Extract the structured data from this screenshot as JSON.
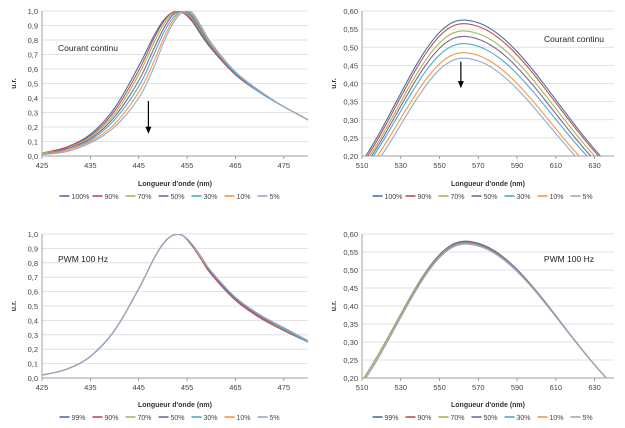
{
  "chart_data": [
    {
      "type": "line",
      "ylabel": "u.r.",
      "xlabel": "Longueur d'onde (nm)",
      "annotation": "Courant continu",
      "arrow": {
        "x": 447,
        "y_from": 0.38,
        "y_to": 0.16
      },
      "xlim": [
        425,
        480
      ],
      "ylim": [
        0,
        1
      ],
      "xticks": [
        425,
        435,
        445,
        455,
        465,
        475
      ],
      "yticks": [
        0,
        0.1,
        0.2,
        0.3,
        0.4,
        0.5,
        0.6,
        0.7,
        0.8,
        0.9,
        1.0
      ],
      "ytick_labels": [
        "0,0",
        "0,1",
        "0,2",
        "0,3",
        "0,4",
        "0,5",
        "0,6",
        "0,7",
        "0,8",
        "0,9",
        "1,0"
      ],
      "grid": true,
      "legend_position": "bottom",
      "x": [
        425,
        430,
        435,
        440,
        445,
        448,
        450,
        452,
        454,
        456,
        458,
        460,
        465,
        470,
        475,
        480
      ],
      "series": [
        {
          "name": "100%",
          "color": "#4a6fa5",
          "values": [
            0.02,
            0.06,
            0.15,
            0.33,
            0.62,
            0.82,
            0.93,
            0.99,
            0.99,
            0.93,
            0.83,
            0.74,
            0.56,
            0.44,
            0.34,
            0.25
          ]
        },
        {
          "name": "90%",
          "color": "#c0504d",
          "values": [
            0.02,
            0.06,
            0.14,
            0.31,
            0.59,
            0.8,
            0.92,
            0.99,
            0.99,
            0.94,
            0.84,
            0.74,
            0.56,
            0.44,
            0.34,
            0.25
          ]
        },
        {
          "name": "70%",
          "color": "#9bbb59",
          "values": [
            0.02,
            0.05,
            0.13,
            0.29,
            0.56,
            0.77,
            0.9,
            0.98,
            1.0,
            0.95,
            0.85,
            0.75,
            0.57,
            0.44,
            0.34,
            0.25
          ]
        },
        {
          "name": "50%",
          "color": "#8064a2",
          "values": [
            0.01,
            0.05,
            0.12,
            0.27,
            0.52,
            0.73,
            0.87,
            0.97,
            1.0,
            0.96,
            0.86,
            0.75,
            0.57,
            0.44,
            0.34,
            0.25
          ]
        },
        {
          "name": "30%",
          "color": "#4bacc6",
          "values": [
            0.01,
            0.04,
            0.11,
            0.25,
            0.48,
            0.69,
            0.84,
            0.95,
            1.0,
            0.97,
            0.87,
            0.76,
            0.57,
            0.44,
            0.34,
            0.25
          ]
        },
        {
          "name": "10%",
          "color": "#f79646",
          "values": [
            0.01,
            0.04,
            0.1,
            0.22,
            0.44,
            0.64,
            0.8,
            0.93,
            1.0,
            0.98,
            0.88,
            0.77,
            0.58,
            0.45,
            0.34,
            0.25
          ]
        },
        {
          "name": "5%",
          "color": "#92a9cf",
          "values": [
            0.01,
            0.03,
            0.09,
            0.2,
            0.4,
            0.6,
            0.77,
            0.91,
            0.99,
            0.99,
            0.89,
            0.78,
            0.58,
            0.45,
            0.34,
            0.25
          ]
        }
      ]
    },
    {
      "type": "line",
      "ylabel": "u.r.",
      "xlabel": "Longueur d'onde (nm)",
      "annotation": "Courant continu",
      "arrow": {
        "x": 561,
        "y_from": 0.46,
        "y_to": 0.39
      },
      "xlim": [
        510,
        640
      ],
      "ylim": [
        0.2,
        0.6
      ],
      "xticks": [
        510,
        530,
        550,
        570,
        590,
        610,
        630
      ],
      "yticks": [
        0.2,
        0.25,
        0.3,
        0.35,
        0.4,
        0.45,
        0.5,
        0.55,
        0.6
      ],
      "ytick_labels": [
        "0,20",
        "0,25",
        "0,30",
        "0,35",
        "0,40",
        "0,45",
        "0,50",
        "0,55",
        "0,60"
      ],
      "grid": true,
      "legend_position": "bottom",
      "series": [
        {
          "name": "100%",
          "color": "#4a6fa5",
          "peak": 0.575,
          "x_left": 512,
          "x_right": 633
        },
        {
          "name": "90%",
          "color": "#c0504d",
          "peak": 0.565,
          "x_left": 513,
          "x_right": 632
        },
        {
          "name": "70%",
          "color": "#9bbb59",
          "peak": 0.545,
          "x_left": 514,
          "x_right": 630
        },
        {
          "name": "50%",
          "color": "#8064a2",
          "peak": 0.53,
          "x_left": 515,
          "x_right": 628
        },
        {
          "name": "30%",
          "color": "#4bacc6",
          "peak": 0.51,
          "x_left": 516,
          "x_right": 626
        },
        {
          "name": "10%",
          "color": "#f79646",
          "peak": 0.485,
          "x_left": 518,
          "x_right": 622
        },
        {
          "name": "5%",
          "color": "#92a9cf",
          "peak": 0.47,
          "x_left": 520,
          "x_right": 620
        }
      ],
      "peak_x": 562
    },
    {
      "type": "line",
      "ylabel": "u.r.",
      "xlabel": "Longueur d'onde (nm)",
      "annotation": "PWM 100 Hz",
      "xlim": [
        425,
        480
      ],
      "ylim": [
        0,
        1
      ],
      "xticks": [
        425,
        435,
        445,
        455,
        465,
        475
      ],
      "yticks": [
        0,
        0.1,
        0.2,
        0.3,
        0.4,
        0.5,
        0.6,
        0.7,
        0.8,
        0.9,
        1.0
      ],
      "ytick_labels": [
        "0,0",
        "0,1",
        "0,2",
        "0,3",
        "0,4",
        "0,5",
        "0,6",
        "0,7",
        "0,8",
        "0,9",
        "1,0"
      ],
      "grid": true,
      "legend_position": "bottom",
      "x": [
        425,
        430,
        435,
        440,
        445,
        448,
        450,
        452,
        454,
        456,
        458,
        460,
        465,
        470,
        475,
        480
      ],
      "series": [
        {
          "name": "99%",
          "color": "#4a6fa5",
          "values": [
            0.02,
            0.06,
            0.15,
            0.33,
            0.62,
            0.82,
            0.93,
            0.99,
            0.99,
            0.92,
            0.82,
            0.72,
            0.54,
            0.42,
            0.33,
            0.25
          ]
        },
        {
          "name": "90%",
          "color": "#c0504d",
          "values": [
            0.02,
            0.06,
            0.15,
            0.33,
            0.62,
            0.82,
            0.93,
            0.99,
            0.99,
            0.92,
            0.82,
            0.72,
            0.54,
            0.42,
            0.33,
            0.25
          ]
        },
        {
          "name": "70%",
          "color": "#9bbb59",
          "values": [
            0.02,
            0.06,
            0.15,
            0.33,
            0.62,
            0.82,
            0.93,
            0.99,
            0.99,
            0.93,
            0.83,
            0.73,
            0.55,
            0.43,
            0.34,
            0.25
          ]
        },
        {
          "name": "50%",
          "color": "#8064a2",
          "values": [
            0.02,
            0.06,
            0.15,
            0.33,
            0.62,
            0.82,
            0.93,
            0.99,
            0.99,
            0.93,
            0.83,
            0.73,
            0.55,
            0.43,
            0.34,
            0.25
          ]
        },
        {
          "name": "30%",
          "color": "#4bacc6",
          "values": [
            0.02,
            0.06,
            0.15,
            0.33,
            0.62,
            0.82,
            0.93,
            0.99,
            0.99,
            0.93,
            0.83,
            0.74,
            0.56,
            0.44,
            0.34,
            0.25
          ]
        },
        {
          "name": "10%",
          "color": "#f79646",
          "values": [
            0.02,
            0.06,
            0.15,
            0.33,
            0.62,
            0.82,
            0.93,
            0.99,
            0.99,
            0.93,
            0.83,
            0.74,
            0.56,
            0.44,
            0.35,
            0.26
          ]
        },
        {
          "name": "5%",
          "color": "#92a9cf",
          "values": [
            0.02,
            0.06,
            0.15,
            0.33,
            0.62,
            0.82,
            0.93,
            0.99,
            0.99,
            0.93,
            0.84,
            0.74,
            0.56,
            0.44,
            0.35,
            0.26
          ]
        }
      ]
    },
    {
      "type": "line",
      "ylabel": "u.r.",
      "xlabel": "Longueur d'onde (nm)",
      "annotation": "PWM 100 Hz",
      "xlim": [
        510,
        640
      ],
      "ylim": [
        0.2,
        0.6
      ],
      "xticks": [
        510,
        530,
        550,
        570,
        590,
        610,
        630
      ],
      "yticks": [
        0.2,
        0.25,
        0.3,
        0.35,
        0.4,
        0.45,
        0.5,
        0.55,
        0.6
      ],
      "ytick_labels": [
        "0,20",
        "0,25",
        "0,30",
        "0,35",
        "0,40",
        "0,45",
        "0,50",
        "0,55",
        "0,60"
      ],
      "grid": true,
      "legend_position": "bottom",
      "series": [
        {
          "name": "99%",
          "color": "#4a6fa5",
          "peak": 0.58,
          "x_left": 511,
          "x_right": 636
        },
        {
          "name": "90%",
          "color": "#c0504d",
          "peak": 0.578,
          "x_left": 511,
          "x_right": 636
        },
        {
          "name": "70%",
          "color": "#9bbb59",
          "peak": 0.576,
          "x_left": 511,
          "x_right": 636
        },
        {
          "name": "50%",
          "color": "#8064a2",
          "peak": 0.575,
          "x_left": 512,
          "x_right": 636
        },
        {
          "name": "30%",
          "color": "#4bacc6",
          "peak": 0.574,
          "x_left": 512,
          "x_right": 636
        },
        {
          "name": "10%",
          "color": "#f79646",
          "peak": 0.573,
          "x_left": 512,
          "x_right": 636
        },
        {
          "name": "5%",
          "color": "#92a9cf",
          "peak": 0.572,
          "x_left": 512,
          "x_right": 636
        }
      ],
      "peak_x": 563
    }
  ]
}
